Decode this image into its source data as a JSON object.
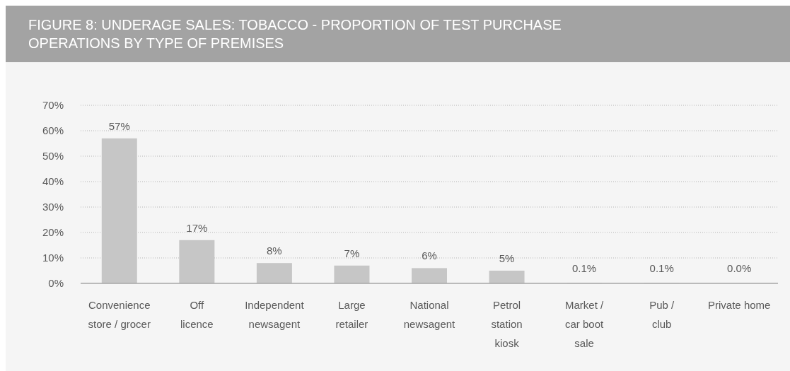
{
  "chart_data": {
    "type": "bar",
    "title": "FIGURE 8: UNDERAGE SALES: TOBACCO - PROPORTION OF TEST PURCHASE\nOPERATIONS BY TYPE OF PREMISES",
    "categories": [
      "Convenience\nstore / grocer",
      "Off\nlicence",
      "Independent\nnewsagent",
      "Large\nretailer",
      "National\nnewsagent",
      "Petrol\nstation\nkiosk",
      "Market /\ncar boot\nsale",
      "Pub /\nclub",
      "Private home"
    ],
    "values": [
      57,
      17,
      8,
      7,
      6,
      5,
      0.1,
      0.1,
      0
    ],
    "value_labels": [
      "57%",
      "17%",
      "8%",
      "7%",
      "6%",
      "5%",
      "0.1%",
      "0.1%",
      "0.0%"
    ],
    "color": "#c6c6c6",
    "ylim": [
      0,
      70
    ],
    "yticks": [
      {
        "value": 0,
        "label": "0%"
      },
      {
        "value": 10,
        "label": "10%"
      },
      {
        "value": 20,
        "label": "20%"
      },
      {
        "value": 30,
        "label": "30%"
      },
      {
        "value": 40,
        "label": "40%"
      },
      {
        "value": 50,
        "label": "50%"
      },
      {
        "value": 60,
        "label": "60%"
      },
      {
        "value": 70,
        "label": "70%"
      }
    ],
    "grid": "y"
  }
}
